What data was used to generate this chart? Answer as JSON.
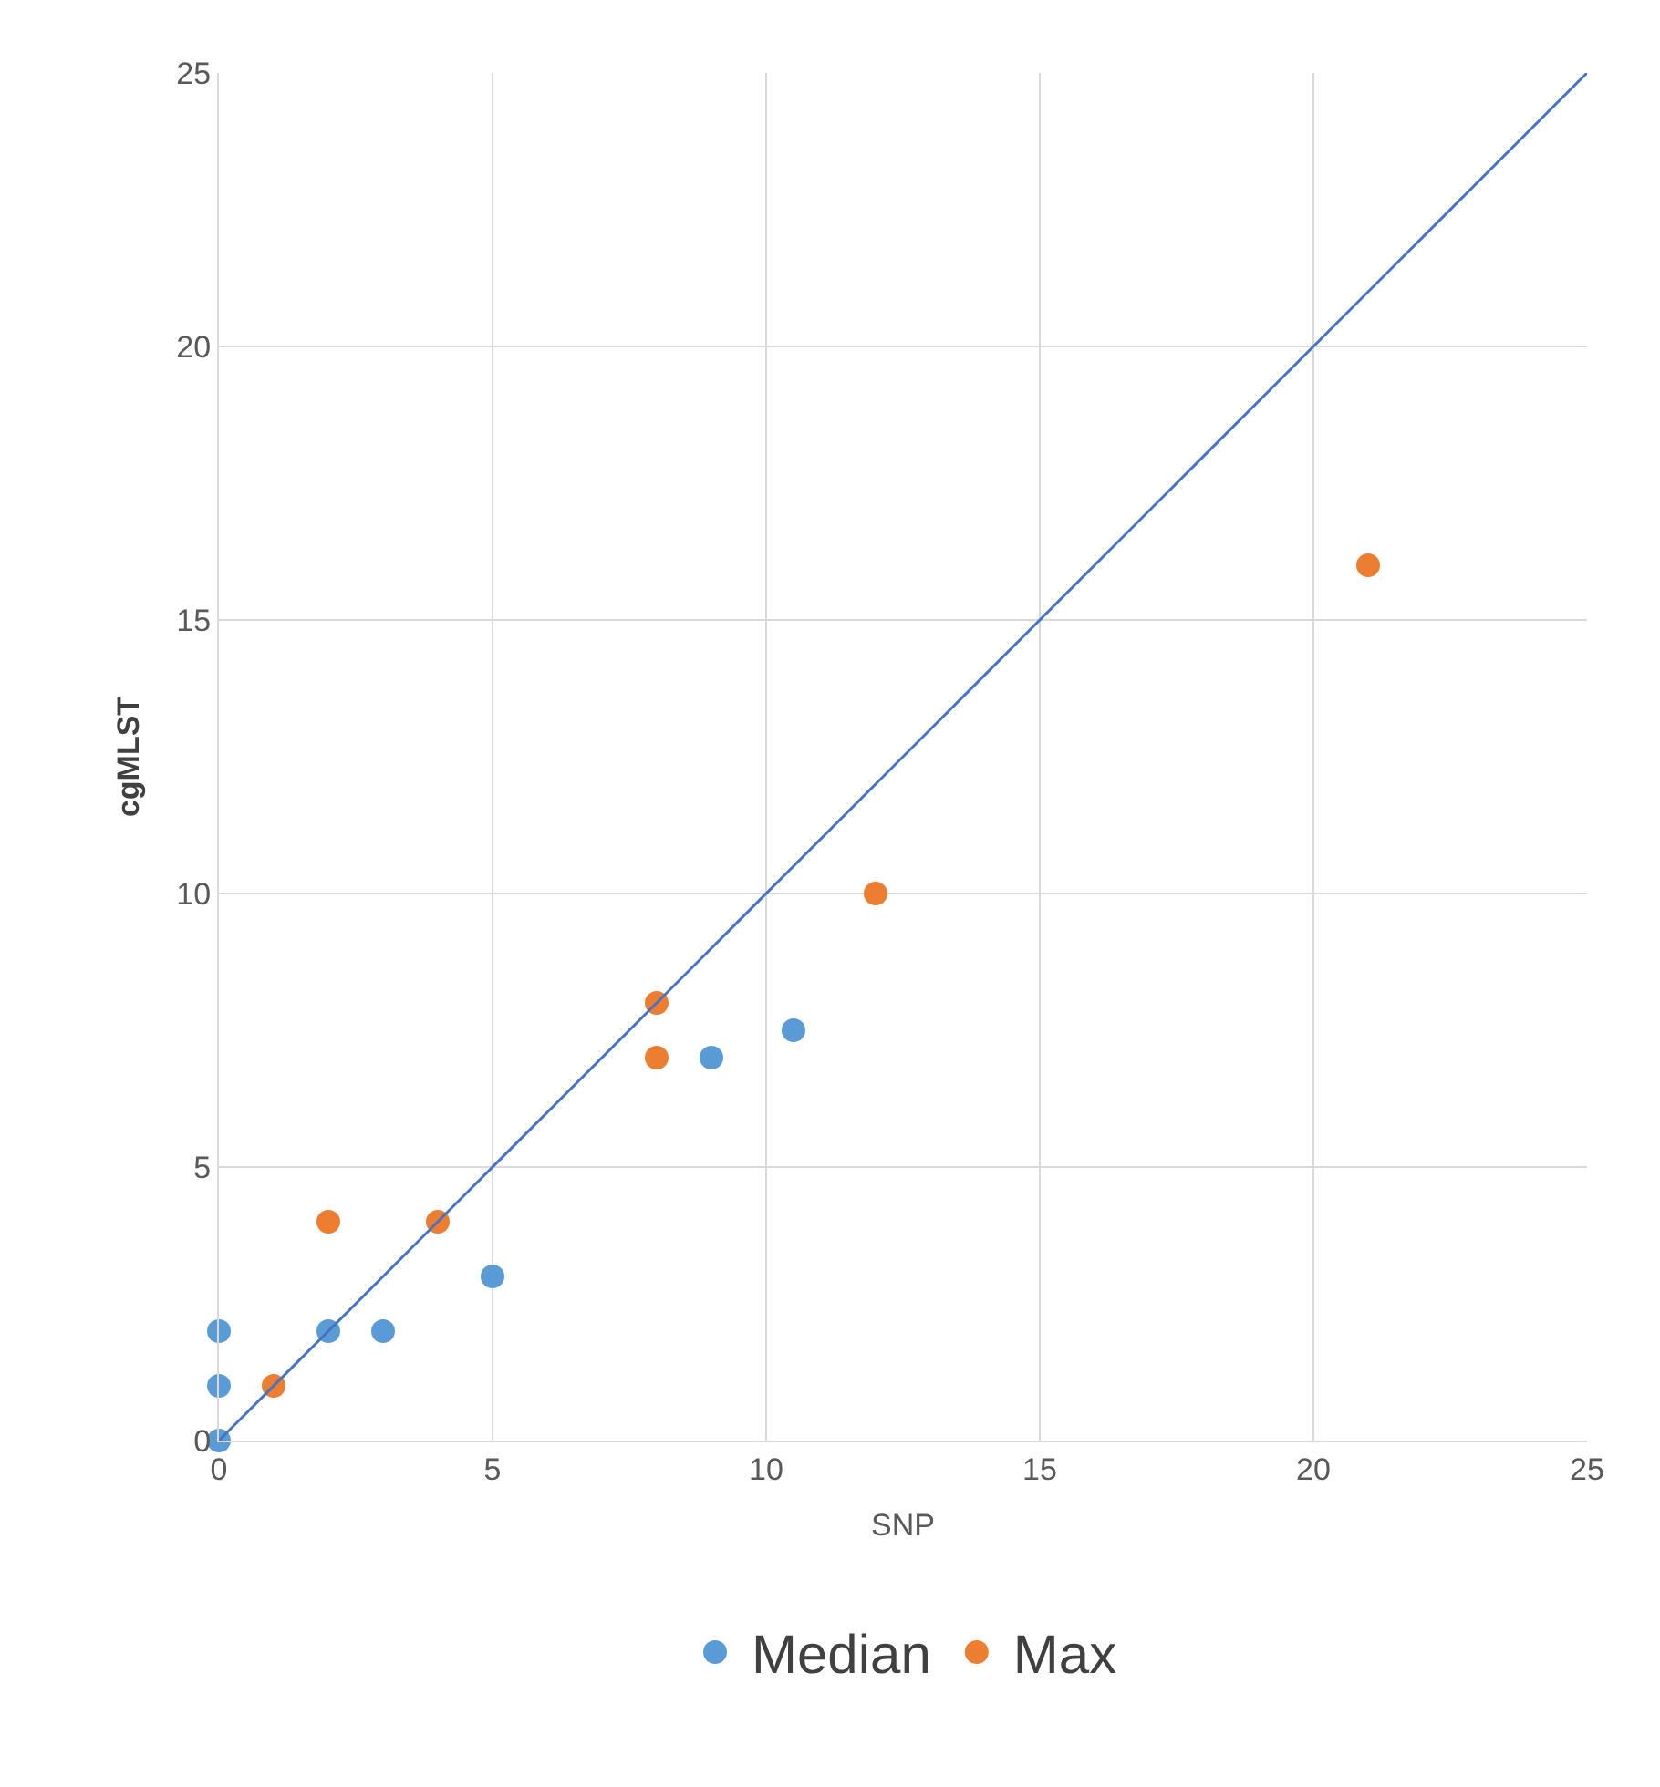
{
  "chart_data": {
    "type": "scatter",
    "xlabel": "SNP",
    "ylabel": "cgMLST",
    "xlim": [
      0,
      25
    ],
    "xticks": [
      0,
      5,
      10,
      15,
      20,
      25
    ],
    "ylim": [
      0,
      25
    ],
    "yticks": [
      0,
      5,
      10,
      15,
      20,
      25
    ],
    "grid": true,
    "legend": "bottom",
    "marker": "circle",
    "series": [
      {
        "name": "Median",
        "color": "#5b9bd5",
        "x": [
          0,
          0,
          0,
          2,
          3,
          5,
          9,
          10.5
        ],
        "values": [
          0,
          1,
          2,
          2,
          2,
          3,
          7,
          7.5
        ]
      },
      {
        "name": "Max",
        "color": "#ed7d31",
        "x": [
          1,
          2,
          4,
          8,
          8,
          12,
          21
        ],
        "values": [
          1,
          4,
          4,
          8,
          7,
          10,
          16
        ]
      },
      {
        "type": "line",
        "color": "#4472c4",
        "x": [
          0,
          25
        ],
        "values": [
          0,
          25
        ],
        "line_style": "solid",
        "marker": "none"
      }
    ]
  }
}
